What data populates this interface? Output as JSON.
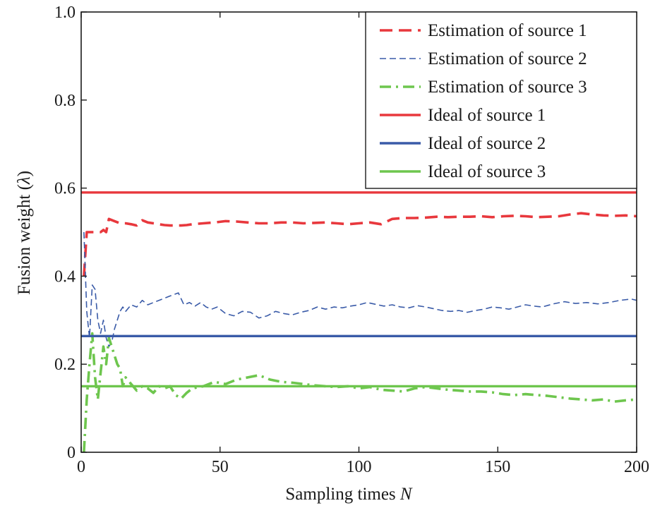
{
  "chart_data": {
    "type": "line",
    "title": "",
    "xlabel": "Sampling times",
    "xlabel_var": "N",
    "ylabel": "Fusion weight (",
    "ylabel_var": "λ",
    "ylabel_close": ")",
    "xlim": [
      0,
      200
    ],
    "ylim": [
      0,
      1.0
    ],
    "x_ticks": [
      0,
      50,
      100,
      150,
      200
    ],
    "x_tick_labels": [
      "0",
      "50",
      "100",
      "150",
      "200"
    ],
    "y_ticks": [
      0,
      0.2,
      0.4,
      0.6,
      0.8,
      1.0
    ],
    "y_tick_labels": [
      "0",
      "0.2",
      "0.4",
      "0.6",
      "0.8",
      "1.0"
    ],
    "grid": false,
    "legend_position": "top-right",
    "series": [
      {
        "name": "Estimation of source 1",
        "color": "#e8383d",
        "style": "dashed-thick",
        "x": [
          1,
          2,
          3,
          5,
          7,
          8,
          9,
          10,
          12,
          14,
          16,
          18,
          20,
          22,
          24,
          26,
          28,
          30,
          32,
          34,
          36,
          38,
          40,
          44,
          48,
          52,
          56,
          60,
          64,
          68,
          72,
          76,
          80,
          84,
          88,
          92,
          96,
          100,
          104,
          108,
          112,
          116,
          120,
          124,
          128,
          132,
          136,
          140,
          144,
          148,
          152,
          156,
          160,
          164,
          168,
          172,
          176,
          180,
          184,
          188,
          192,
          196,
          200
        ],
        "values": [
          0.4,
          0.5,
          0.5,
          0.5,
          0.5,
          0.505,
          0.5,
          0.53,
          0.525,
          0.52,
          0.52,
          0.518,
          0.515,
          0.527,
          0.522,
          0.52,
          0.518,
          0.516,
          0.515,
          0.515,
          0.515,
          0.516,
          0.518,
          0.52,
          0.522,
          0.525,
          0.524,
          0.522,
          0.52,
          0.52,
          0.522,
          0.522,
          0.52,
          0.521,
          0.522,
          0.52,
          0.518,
          0.52,
          0.522,
          0.518,
          0.53,
          0.532,
          0.532,
          0.533,
          0.535,
          0.534,
          0.535,
          0.535,
          0.536,
          0.534,
          0.536,
          0.537,
          0.536,
          0.534,
          0.535,
          0.536,
          0.54,
          0.543,
          0.54,
          0.538,
          0.537,
          0.538,
          0.536
        ]
      },
      {
        "name": "Estimation of source 2",
        "color": "#3a5ba8",
        "style": "dashed-thin",
        "x": [
          1,
          2,
          3,
          4,
          5,
          6,
          7,
          8,
          9,
          10,
          11,
          12,
          13,
          14,
          15,
          16,
          18,
          20,
          22,
          24,
          26,
          28,
          30,
          32,
          35,
          37,
          39,
          41,
          43,
          45,
          47,
          49,
          52,
          55,
          58,
          61,
          64,
          67,
          70,
          73,
          76,
          79,
          82,
          85,
          88,
          91,
          94,
          97,
          100,
          103,
          106,
          109,
          112,
          115,
          118,
          121,
          124,
          127,
          130,
          133,
          136,
          139,
          142,
          145,
          148,
          151,
          154,
          157,
          160,
          163,
          166,
          170,
          174,
          178,
          182,
          186,
          190,
          194,
          198,
          200
        ],
        "values": [
          0.5,
          0.32,
          0.26,
          0.38,
          0.37,
          0.3,
          0.27,
          0.3,
          0.26,
          0.24,
          0.25,
          0.28,
          0.3,
          0.32,
          0.33,
          0.32,
          0.335,
          0.33,
          0.345,
          0.335,
          0.34,
          0.345,
          0.35,
          0.355,
          0.362,
          0.335,
          0.34,
          0.332,
          0.34,
          0.33,
          0.325,
          0.33,
          0.315,
          0.31,
          0.32,
          0.318,
          0.305,
          0.31,
          0.32,
          0.315,
          0.312,
          0.318,
          0.322,
          0.33,
          0.325,
          0.33,
          0.328,
          0.332,
          0.335,
          0.34,
          0.336,
          0.332,
          0.335,
          0.33,
          0.328,
          0.333,
          0.33,
          0.326,
          0.322,
          0.32,
          0.322,
          0.318,
          0.322,
          0.325,
          0.33,
          0.328,
          0.325,
          0.33,
          0.335,
          0.332,
          0.33,
          0.337,
          0.342,
          0.338,
          0.34,
          0.337,
          0.34,
          0.345,
          0.348,
          0.345
        ]
      },
      {
        "name": "Estimation of source 3",
        "color": "#6ec64e",
        "style": "dash-dot",
        "x": [
          1,
          2,
          3,
          4,
          5,
          6,
          7,
          8,
          9,
          10,
          11,
          12,
          13,
          14,
          15,
          16,
          18,
          20,
          22,
          24,
          26,
          28,
          30,
          32,
          34,
          36,
          38,
          40,
          44,
          48,
          52,
          56,
          60,
          64,
          68,
          72,
          76,
          80,
          84,
          88,
          92,
          96,
          100,
          104,
          108,
          112,
          116,
          120,
          124,
          128,
          132,
          136,
          140,
          144,
          148,
          152,
          156,
          160,
          164,
          168,
          172,
          176,
          180,
          184,
          188,
          192,
          196,
          200
        ],
        "values": [
          0.0,
          0.12,
          0.2,
          0.27,
          0.17,
          0.12,
          0.18,
          0.24,
          0.2,
          0.26,
          0.24,
          0.22,
          0.2,
          0.19,
          0.15,
          0.17,
          0.155,
          0.14,
          0.15,
          0.145,
          0.135,
          0.15,
          0.145,
          0.15,
          0.13,
          0.122,
          0.135,
          0.145,
          0.15,
          0.16,
          0.155,
          0.165,
          0.17,
          0.175,
          0.165,
          0.16,
          0.158,
          0.155,
          0.152,
          0.15,
          0.148,
          0.15,
          0.145,
          0.148,
          0.142,
          0.14,
          0.138,
          0.145,
          0.148,
          0.145,
          0.142,
          0.14,
          0.138,
          0.138,
          0.136,
          0.132,
          0.13,
          0.132,
          0.13,
          0.128,
          0.125,
          0.122,
          0.12,
          0.118,
          0.12,
          0.115,
          0.118,
          0.12
        ]
      },
      {
        "name": "Ideal of source 1",
        "color": "#e8383d",
        "style": "solid",
        "x": [
          0,
          200
        ],
        "values": [
          0.59,
          0.59
        ]
      },
      {
        "name": "Ideal of source 2",
        "color": "#3a5ba8",
        "style": "solid",
        "x": [
          0,
          200
        ],
        "values": [
          0.264,
          0.264
        ]
      },
      {
        "name": "Ideal of source 3",
        "color": "#6ec64e",
        "style": "solid",
        "x": [
          0,
          200
        ],
        "values": [
          0.15,
          0.15
        ]
      }
    ]
  }
}
